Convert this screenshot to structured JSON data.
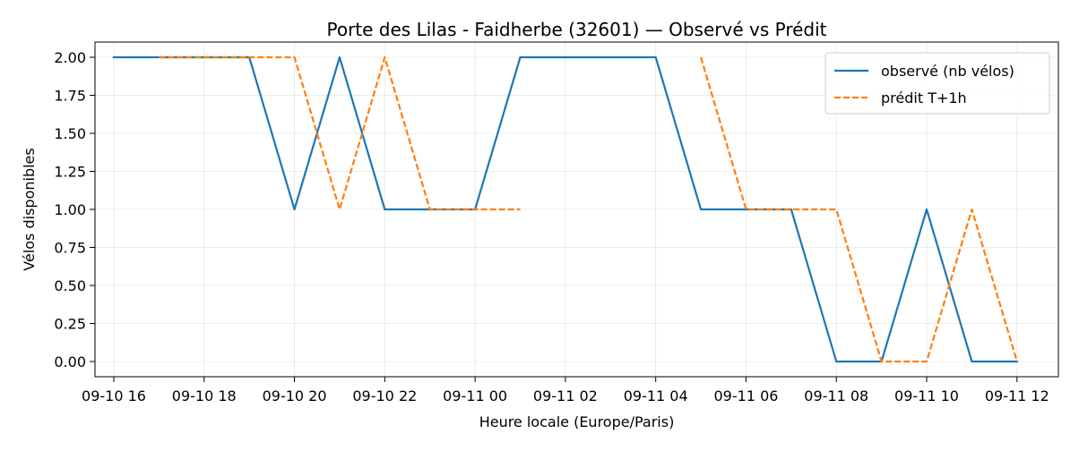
{
  "chart_data": {
    "type": "line",
    "title": "Porte des Lilas - Faidherbe (32601) — Observé vs Prédit",
    "xlabel": "Heure locale (Europe/Paris)",
    "ylabel": "Vélos disponibles",
    "x_unit": "hour",
    "x_start": "09-10 16",
    "x_ticks": [
      "09-10 16",
      "09-10 18",
      "09-10 20",
      "09-10 22",
      "09-11 00",
      "09-11 02",
      "09-11 04",
      "09-11 06",
      "09-11 08",
      "09-11 10",
      "09-11 12"
    ],
    "y_ticks": [
      "0.00",
      "0.25",
      "0.50",
      "0.75",
      "1.00",
      "1.25",
      "1.50",
      "1.75",
      "2.00"
    ],
    "ylim": [
      -0.1,
      2.1
    ],
    "xlim": [
      "09-10 15:35",
      "09-11 12:55"
    ],
    "grid": true,
    "legend_position": "top-right",
    "series": [
      {
        "name": "observé (nb vélos)",
        "color": "#1f77b4",
        "dash": "solid",
        "segments": [
          [
            [
              "09-10 16",
              2
            ],
            [
              "09-10 17",
              2
            ],
            [
              "09-10 18",
              2
            ],
            [
              "09-10 19",
              2
            ],
            [
              "09-10 20",
              1
            ],
            [
              "09-10 21",
              2
            ],
            [
              "09-10 22",
              1
            ],
            [
              "09-10 23",
              1
            ],
            [
              "09-11 00",
              1
            ],
            [
              "09-11 01",
              2
            ],
            [
              "09-11 02",
              2
            ],
            [
              "09-11 03",
              2
            ],
            [
              "09-11 04",
              2
            ],
            [
              "09-11 05",
              1
            ],
            [
              "09-11 06",
              1
            ],
            [
              "09-11 07",
              1
            ],
            [
              "09-11 08",
              0
            ],
            [
              "09-11 09",
              0
            ],
            [
              "09-11 10",
              1
            ],
            [
              "09-11 11",
              0
            ],
            [
              "09-11 12",
              0
            ]
          ]
        ]
      },
      {
        "name": "prédit T+1h",
        "color": "#ff7f0e",
        "dash": "dashed",
        "segments": [
          [
            [
              "09-10 17",
              2
            ],
            [
              "09-10 18",
              2
            ],
            [
              "09-10 19",
              2
            ],
            [
              "09-10 20",
              2
            ],
            [
              "09-10 21",
              1
            ],
            [
              "09-10 22",
              2
            ],
            [
              "09-10 23",
              1
            ],
            [
              "09-11 00",
              1
            ],
            [
              "09-11 01",
              1
            ]
          ],
          [
            [
              "09-11 05",
              2
            ],
            [
              "09-11 06",
              1
            ],
            [
              "09-11 07",
              1
            ],
            [
              "09-11 08",
              1
            ],
            [
              "09-11 09",
              0
            ],
            [
              "09-11 10",
              0
            ],
            [
              "09-11 11",
              1
            ],
            [
              "09-11 12",
              0
            ]
          ]
        ]
      }
    ]
  }
}
